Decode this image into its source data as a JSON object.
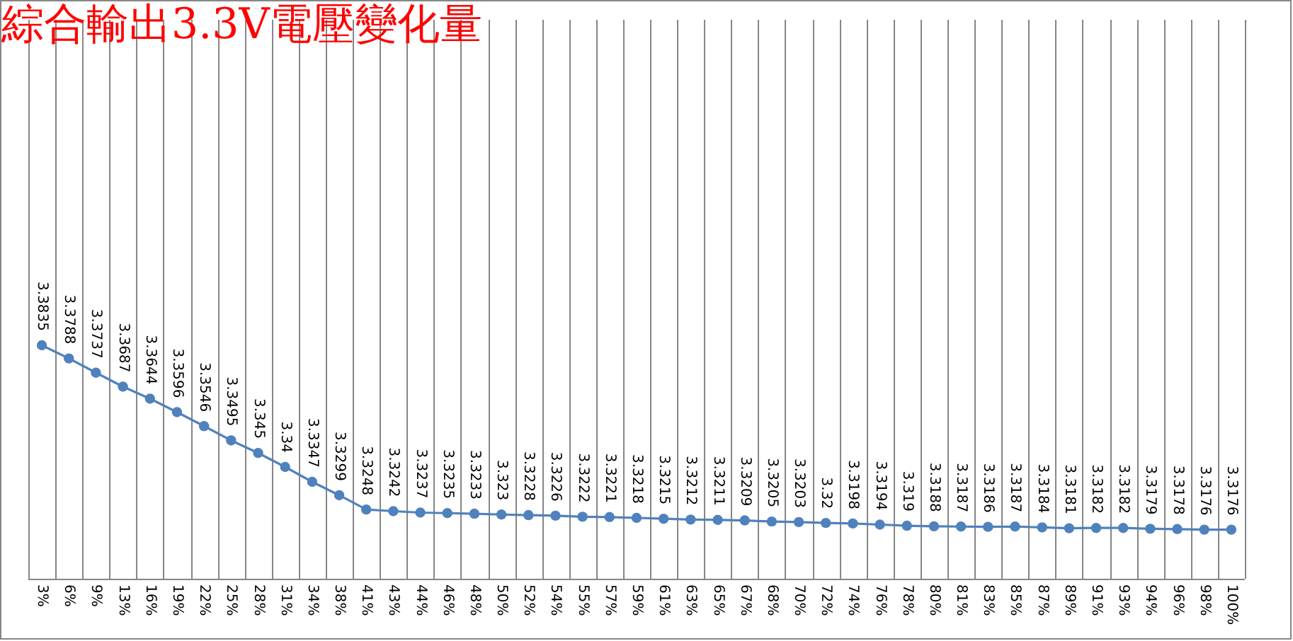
{
  "chart_data": {
    "type": "line",
    "title": "綜合輸出3.3V電壓變化量",
    "categories": [
      "3%",
      "6%",
      "9%",
      "13%",
      "16%",
      "19%",
      "22%",
      "25%",
      "28%",
      "31%",
      "34%",
      "38%",
      "41%",
      "43%",
      "44%",
      "46%",
      "48%",
      "50%",
      "52%",
      "54%",
      "55%",
      "57%",
      "59%",
      "61%",
      "63%",
      "65%",
      "67%",
      "68%",
      "70%",
      "72%",
      "74%",
      "76%",
      "78%",
      "80%",
      "81%",
      "83%",
      "85%",
      "87%",
      "89%",
      "91%",
      "93%",
      "94%",
      "96%",
      "98%",
      "100%"
    ],
    "series": [
      {
        "color": "#4f81bd",
        "values": [
          3.3835,
          3.3788,
          3.3737,
          3.3687,
          3.3644,
          3.3596,
          3.3546,
          3.3495,
          3.345,
          3.34,
          3.3347,
          3.3299,
          3.3248,
          3.3242,
          3.3237,
          3.3235,
          3.3233,
          3.323,
          3.3228,
          3.3226,
          3.3222,
          3.3221,
          3.3218,
          3.3215,
          3.3212,
          3.3211,
          3.3209,
          3.3205,
          3.3203,
          3.32,
          3.3198,
          3.3194,
          3.319,
          3.3188,
          3.3187,
          3.3186,
          3.3187,
          3.3184,
          3.3181,
          3.3182,
          3.3182,
          3.3179,
          3.3178,
          3.3176,
          3.3176
        ]
      }
    ],
    "data_labels": true,
    "grid": "x",
    "marker": "circle"
  }
}
